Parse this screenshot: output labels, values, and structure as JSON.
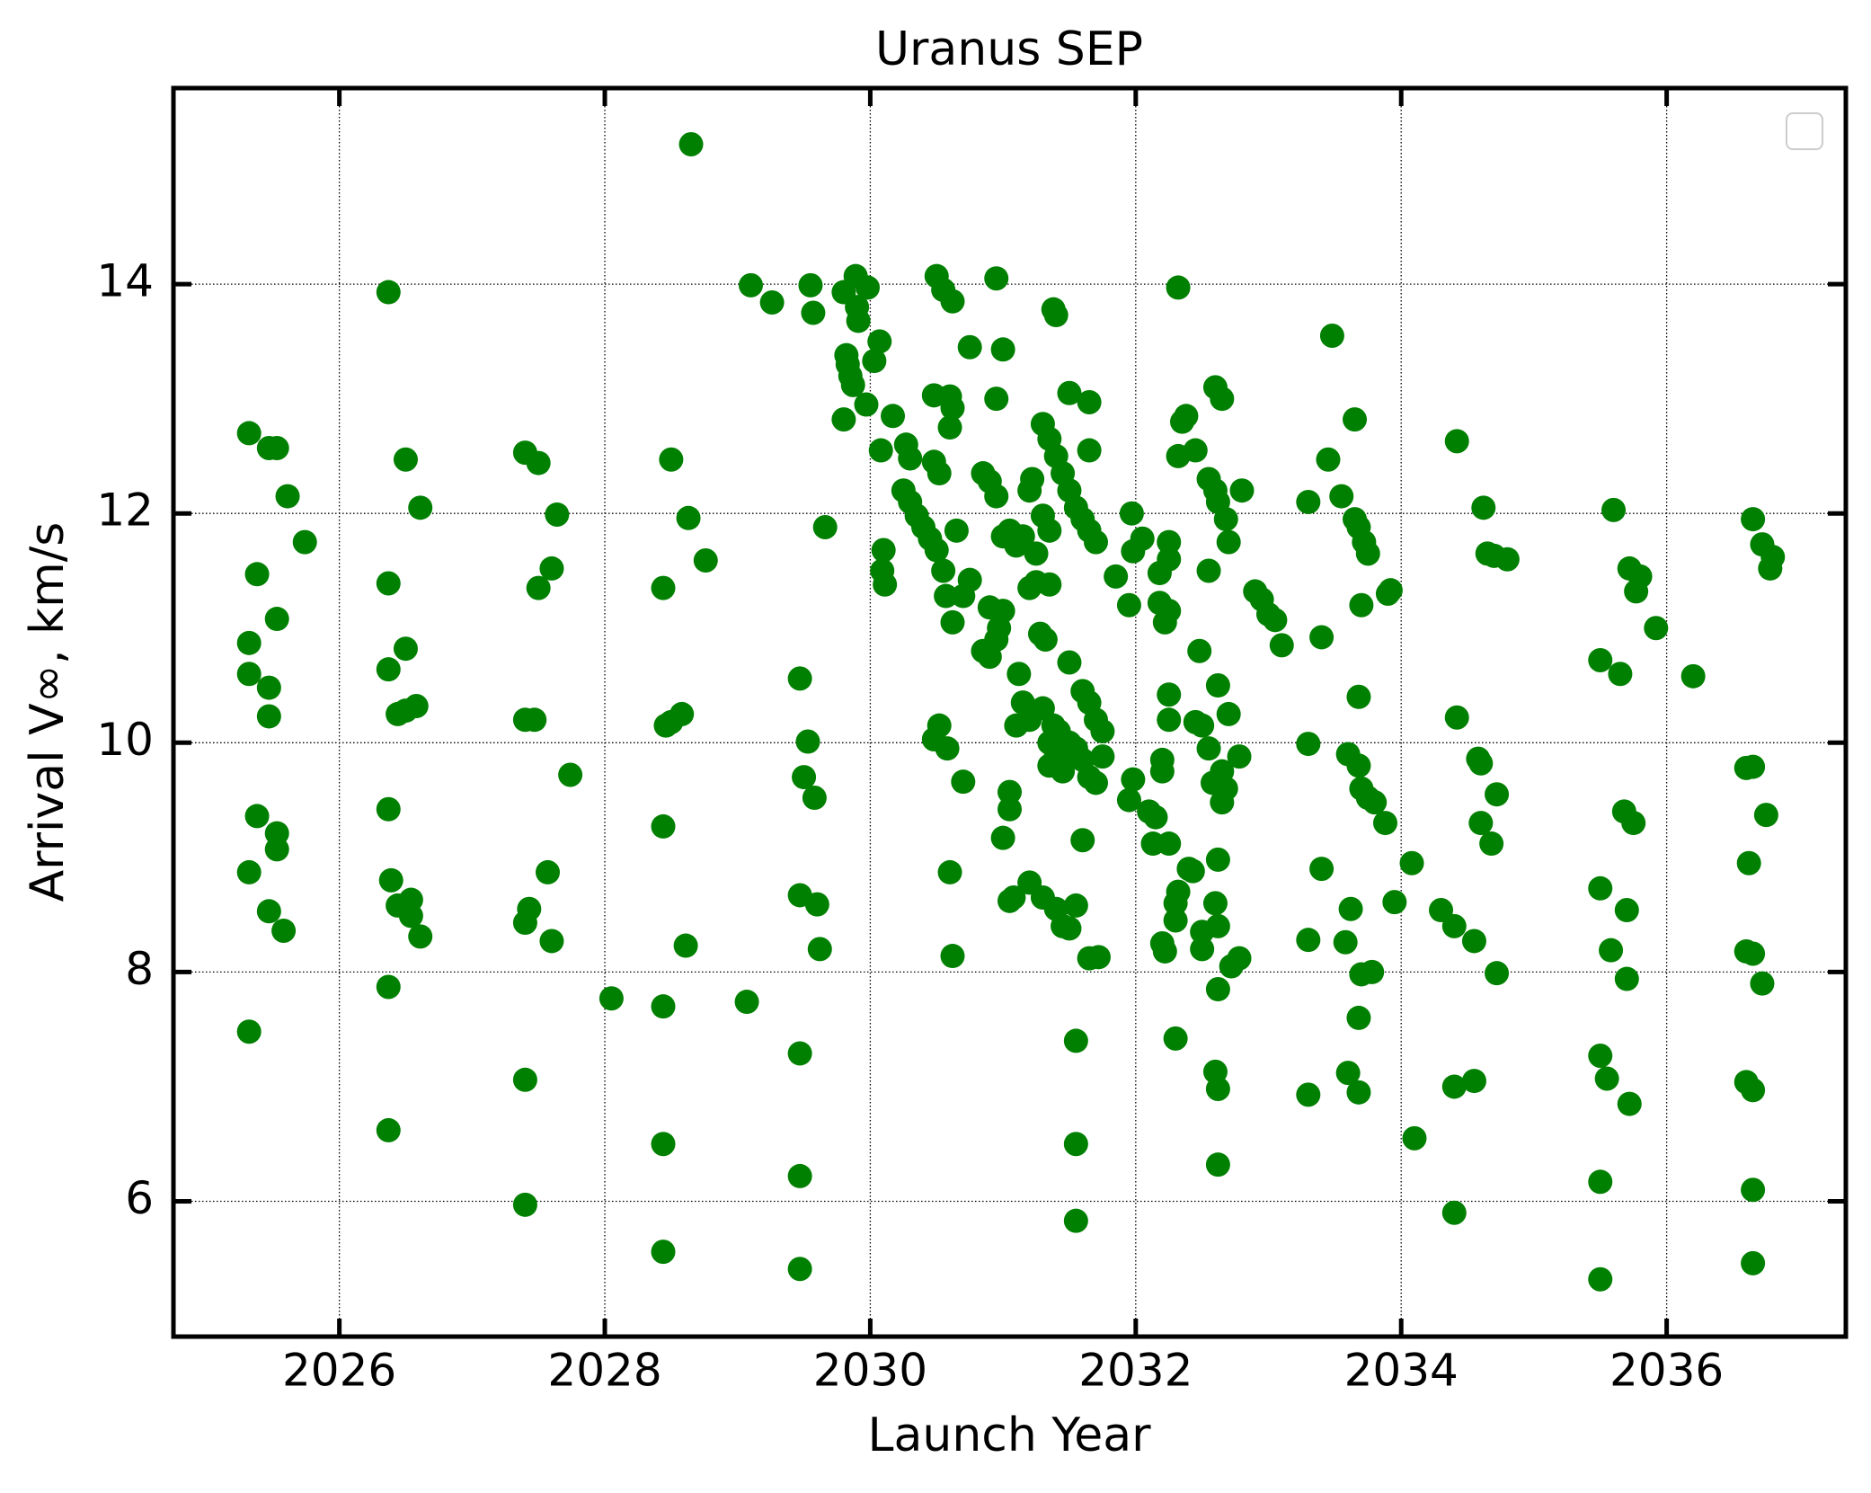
{
  "chart_data": {
    "type": "scatter",
    "title": "Uranus SEP",
    "x_label": "Launch Year",
    "y_label": "Arrival V∞, km/s",
    "color": "#008000",
    "grid": true,
    "xlim": [
      2024.75,
      2037.35
    ],
    "ylim": [
      4.82,
      15.71
    ],
    "xticks": [
      2026,
      2028,
      2030,
      2032,
      2034,
      2036
    ],
    "yticks": [
      6,
      8,
      10,
      12,
      14
    ],
    "x": [
      2025.32,
      2025.32,
      2025.32,
      2025.32,
      2025.32,
      2025.38,
      2025.38,
      2025.47,
      2025.47,
      2025.47,
      2025.47,
      2025.53,
      2025.53,
      2025.53,
      2025.53,
      2025.58,
      2025.61,
      2025.74,
      2026.37,
      2026.37,
      2026.37,
      2026.37,
      2026.37,
      2026.37,
      2026.39,
      2026.44,
      2026.44,
      2026.5,
      2026.5,
      2026.5,
      2026.54,
      2026.54,
      2026.58,
      2026.61,
      2026.61,
      2027.4,
      2027.4,
      2027.4,
      2027.4,
      2027.4,
      2027.43,
      2027.47,
      2027.5,
      2027.5,
      2027.57,
      2027.6,
      2027.6,
      2027.64,
      2027.74,
      2028.05,
      2028.44,
      2028.44,
      2028.44,
      2028.44,
      2028.44,
      2028.46,
      2028.5,
      2028.5,
      2028.58,
      2028.61,
      2028.63,
      2028.65,
      2028.76,
      2029.07,
      2029.1,
      2029.26,
      2029.47,
      2029.47,
      2029.47,
      2029.47,
      2029.47,
      2029.5,
      2029.53,
      2029.55,
      2029.57,
      2029.58,
      2029.6,
      2029.62,
      2029.66,
      2029.8,
      2029.82,
      2029.83,
      2029.85,
      2029.87,
      2029.8,
      2029.89,
      2029.9,
      2029.91,
      2029.97,
      2029.98,
      2030.03,
      2030.07,
      2030.08,
      2030.1,
      2030.09,
      2030.11,
      2030.17,
      2030.27,
      2030.3,
      2030.25,
      2030.3,
      2030.35,
      2030.4,
      2030.45,
      2030.48,
      2030.52,
      2030.5,
      2030.55,
      2030.48,
      2030.5,
      2030.55,
      2030.6,
      2030.62,
      2030.6,
      2030.62,
      2030.65,
      2030.57,
      2030.62,
      2030.7,
      2030.75,
      2030.75,
      2030.85,
      2030.9,
      2030.9,
      2030.85,
      2030.9,
      2030.95,
      2030.97,
      2031.0,
      2030.95,
      2030.95,
      2031.0,
      2030.95,
      2031.0,
      2031.05,
      2031.1,
      2031.15,
      2031.2,
      2031.22,
      2031.25,
      2031.2,
      2031.25,
      2031.35,
      2031.3,
      2031.35,
      2031.28,
      2031.32,
      2031.12,
      2031.15,
      2031.2,
      2031.1,
      2031.05,
      2031.05,
      2031.0,
      2031.05,
      2031.08,
      2031.2,
      2031.3,
      2031.4,
      2031.45,
      2031.55,
      2031.5,
      2031.55,
      2031.55,
      2031.55,
      2031.6,
      2031.65,
      2031.72,
      2030.48,
      2030.52,
      2030.58,
      2030.6,
      2030.62,
      2030.7,
      2031.3,
      2031.35,
      2031.4,
      2031.45,
      2031.5,
      2031.55,
      2031.6,
      2031.65,
      2031.7,
      2031.38,
      2031.4,
      2031.5,
      2031.65,
      2031.65,
      2031.5,
      2031.6,
      2031.65,
      2031.7,
      2031.75,
      2031.3,
      2031.35,
      2031.4,
      2031.45,
      2031.5,
      2031.55,
      2031.6,
      2031.65,
      2031.7,
      2031.75,
      2031.42,
      2031.48,
      2031.35,
      2031.38,
      2031.85,
      2031.95,
      2031.97,
      2031.98,
      2032.05,
      2031.95,
      2031.98,
      2032.1,
      2032.13,
      2032.15,
      2032.18,
      2032.18,
      2032.22,
      2032.25,
      2032.25,
      2032.25,
      2032.25,
      2032.25,
      2032.2,
      2032.2,
      2032.22,
      2032.2,
      2032.25,
      2032.3,
      2032.32,
      2032.3,
      2032.3,
      2032.32,
      2032.32,
      2032.35,
      2032.38,
      2032.4,
      2032.43,
      2032.45,
      2032.5,
      2032.45,
      2032.48,
      2032.5,
      2032.5,
      2032.55,
      2032.55,
      2032.55,
      2032.58,
      2032.6,
      2032.62,
      2032.6,
      2032.65,
      2032.62,
      2032.6,
      2032.62,
      2032.62,
      2032.62,
      2032.6,
      2032.62,
      2032.62,
      2032.65,
      2032.65,
      2032.68,
      2032.68,
      2032.7,
      2032.7,
      2032.72,
      2032.78,
      2032.78,
      2032.8,
      2032.9,
      2032.95,
      2033.0,
      2033.05,
      2033.1,
      2033.3,
      2033.3,
      2033.3,
      2033.3,
      2033.4,
      2033.4,
      2033.45,
      2033.48,
      2033.55,
      2033.6,
      2033.58,
      2033.62,
      2033.6,
      2033.65,
      2033.65,
      2033.68,
      2033.68,
      2033.68,
      2033.7,
      2033.7,
      2033.7,
      2033.68,
      2033.68,
      2033.72,
      2033.75,
      2033.75,
      2033.78,
      2033.8,
      2033.88,
      2033.9,
      2033.92,
      2033.95,
      2034.08,
      2034.1,
      2034.3,
      2034.4,
      2034.4,
      2034.4,
      2034.42,
      2034.42,
      2034.55,
      2034.55,
      2034.58,
      2034.6,
      2034.6,
      2034.62,
      2034.65,
      2034.68,
      2034.7,
      2034.72,
      2034.72,
      2034.8,
      2035.5,
      2035.5,
      2035.5,
      2035.5,
      2035.5,
      2035.55,
      2035.58,
      2035.6,
      2035.65,
      2035.68,
      2035.7,
      2035.7,
      2035.72,
      2035.72,
      2035.75,
      2035.77,
      2035.8,
      2035.92,
      2036.2,
      2036.6,
      2036.6,
      2036.6,
      2036.62,
      2036.65,
      2036.65,
      2036.65,
      2036.65,
      2036.65,
      2036.65,
      2036.72,
      2036.75,
      2036.72,
      2036.78,
      2036.8
    ],
    "values": [
      12.7,
      10.87,
      10.6,
      8.87,
      7.48,
      11.47,
      9.36,
      12.57,
      10.48,
      10.23,
      8.53,
      12.57,
      11.08,
      9.07,
      9.21,
      8.36,
      12.15,
      11.75,
      13.93,
      11.39,
      10.64,
      9.42,
      7.87,
      6.62,
      8.8,
      8.58,
      10.25,
      12.47,
      10.82,
      10.28,
      8.63,
      8.49,
      10.32,
      12.05,
      8.31,
      12.53,
      10.2,
      8.43,
      7.06,
      5.97,
      8.55,
      10.2,
      12.44,
      11.35,
      8.87,
      11.52,
      8.27,
      11.99,
      9.72,
      7.77,
      9.27,
      7.7,
      6.5,
      5.56,
      11.35,
      10.15,
      12.47,
      10.18,
      10.25,
      8.23,
      11.96,
      15.22,
      11.59,
      7.74,
      13.99,
      13.84,
      10.56,
      8.67,
      7.29,
      6.22,
      5.41,
      9.7,
      10.01,
      13.99,
      13.75,
      9.52,
      8.59,
      8.2,
      11.88,
      13.93,
      13.38,
      13.3,
      13.2,
      13.12,
      12.82,
      14.07,
      13.8,
      13.68,
      12.95,
      13.97,
      13.33,
      13.5,
      12.55,
      11.68,
      11.5,
      11.38,
      12.85,
      12.6,
      12.48,
      12.2,
      12.1,
      11.98,
      11.88,
      11.78,
      12.45,
      12.35,
      11.68,
      11.5,
      13.03,
      14.07,
      13.95,
      13.02,
      12.92,
      12.75,
      13.85,
      11.85,
      11.28,
      11.05,
      11.28,
      11.42,
      13.45,
      12.35,
      12.28,
      11.18,
      10.8,
      10.75,
      10.9,
      11.0,
      11.15,
      13.0,
      14.05,
      13.43,
      12.15,
      11.8,
      11.85,
      11.72,
      11.8,
      12.2,
      12.3,
      11.65,
      11.35,
      11.4,
      11.38,
      11.98,
      11.85,
      10.95,
      10.9,
      10.6,
      10.35,
      10.2,
      10.15,
      9.57,
      9.42,
      9.17,
      8.62,
      8.65,
      8.78,
      8.65,
      8.55,
      8.4,
      8.58,
      8.38,
      7.4,
      6.5,
      5.83,
      9.15,
      8.12,
      8.13,
      10.03,
      10.15,
      9.95,
      8.87,
      8.14,
      9.66,
      12.78,
      12.65,
      12.5,
      12.35,
      12.2,
      12.05,
      11.95,
      11.85,
      11.75,
      13.78,
      13.73,
      13.05,
      12.97,
      12.55,
      10.7,
      10.45,
      10.35,
      10.2,
      10.1,
      10.3,
      10.0,
      9.9,
      9.75,
      10.0,
      9.95,
      9.85,
      9.7,
      9.65,
      9.88,
      10.1,
      9.85,
      9.8,
      10.15,
      11.45,
      11.2,
      12.0,
      11.67,
      11.78,
      9.5,
      9.68,
      9.4,
      9.12,
      9.35,
      11.48,
      11.22,
      11.05,
      11.15,
      10.42,
      10.2,
      11.75,
      11.6,
      9.85,
      9.75,
      8.18,
      8.25,
      9.12,
      8.6,
      8.7,
      8.45,
      7.42,
      13.97,
      12.5,
      12.8,
      12.85,
      8.9,
      8.88,
      10.18,
      10.15,
      12.55,
      10.8,
      8.35,
      8.2,
      12.3,
      11.5,
      9.95,
      9.65,
      12.2,
      12.1,
      13.1,
      13.0,
      10.5,
      8.6,
      8.4,
      8.98,
      7.85,
      7.13,
      6.98,
      6.32,
      9.48,
      9.75,
      9.6,
      11.95,
      11.75,
      10.25,
      8.05,
      8.12,
      9.88,
      12.2,
      11.32,
      11.25,
      11.12,
      11.07,
      10.85,
      12.1,
      9.99,
      8.28,
      6.93,
      10.92,
      8.9,
      12.47,
      13.55,
      12.15,
      9.9,
      8.26,
      8.55,
      7.12,
      11.95,
      12.82,
      11.88,
      10.4,
      9.8,
      9.6,
      11.2,
      7.98,
      7.6,
      6.95,
      11.75,
      9.52,
      11.65,
      8.0,
      9.48,
      9.3,
      11.3,
      11.33,
      8.61,
      8.95,
      6.55,
      8.54,
      8.4,
      7.0,
      5.9,
      10.22,
      12.63,
      7.05,
      8.27,
      9.86,
      9.82,
      9.3,
      12.05,
      11.65,
      9.12,
      11.63,
      9.55,
      7.99,
      11.6,
      10.72,
      8.73,
      7.27,
      6.17,
      5.32,
      7.07,
      8.19,
      12.03,
      10.6,
      9.4,
      8.54,
      7.94,
      6.85,
      11.52,
      9.3,
      11.32,
      11.45,
      11.0,
      10.58,
      9.78,
      8.18,
      7.04,
      8.95,
      11.95,
      9.79,
      8.16,
      6.97,
      6.1,
      5.46,
      11.73,
      9.37,
      7.9,
      11.52,
      11.62
    ]
  }
}
